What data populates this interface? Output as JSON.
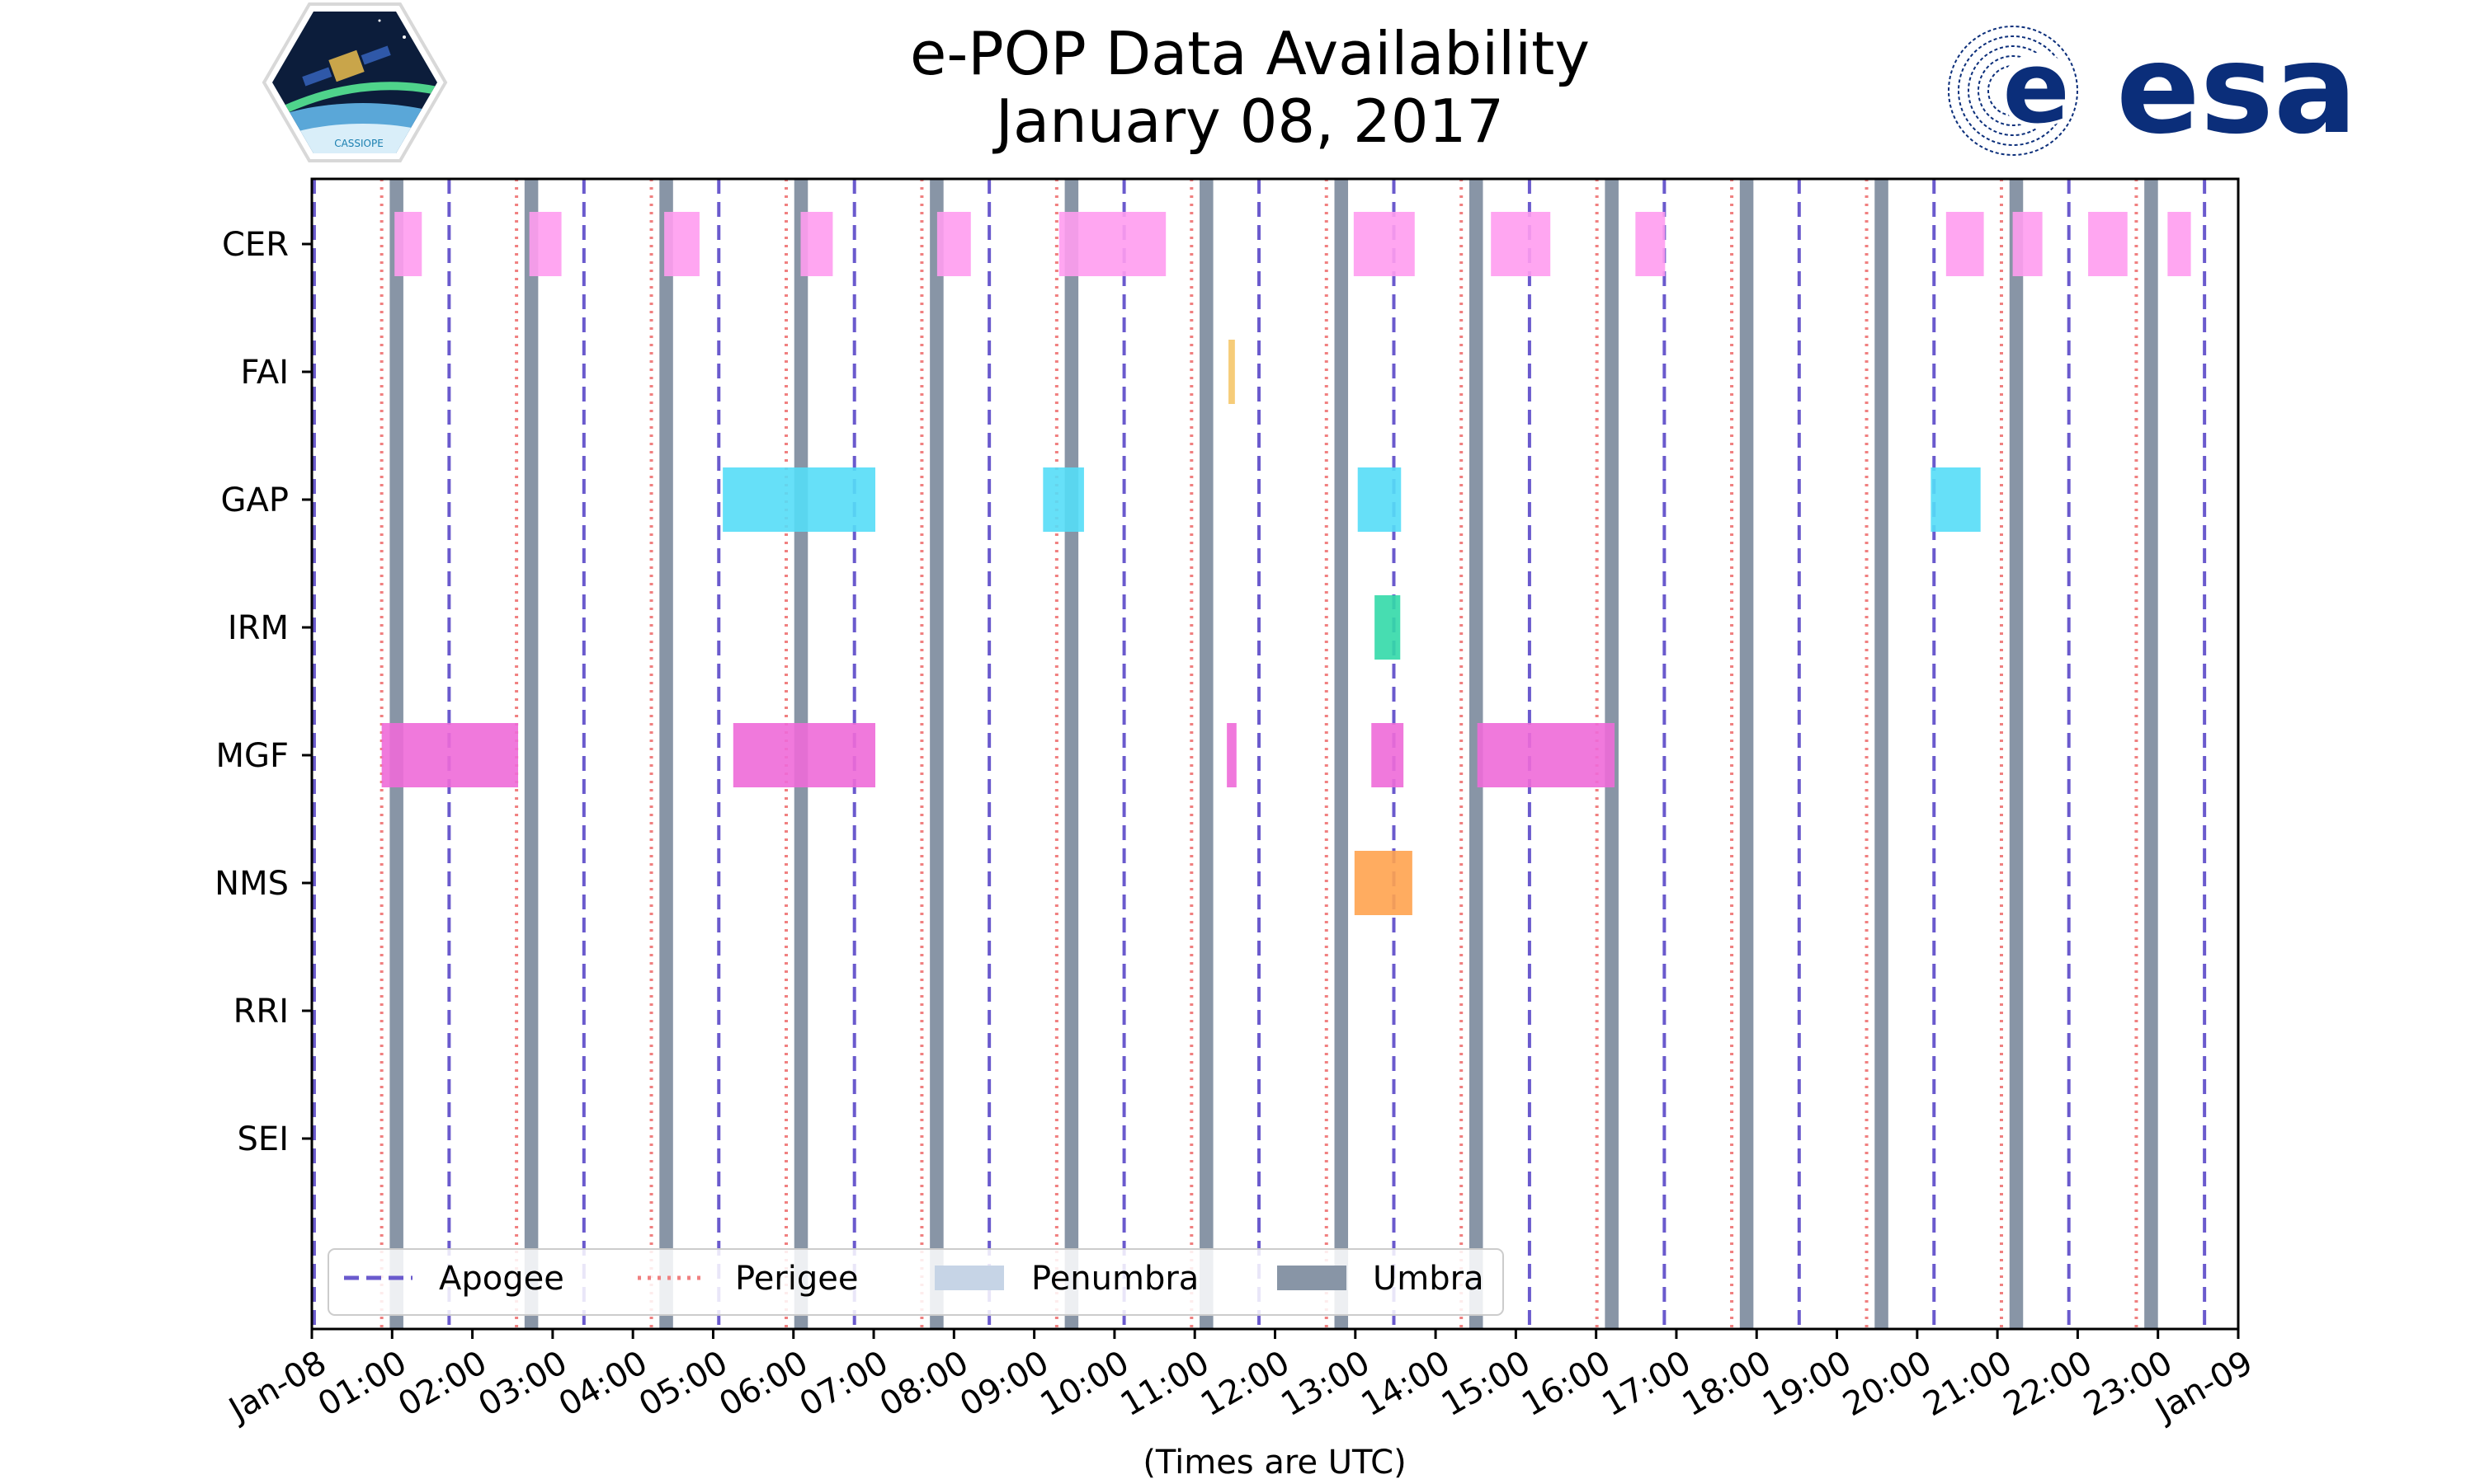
{
  "title": {
    "line1": "e-POP Data Availability",
    "line2": "January 08, 2017"
  },
  "logos": {
    "left_caption": "CASSIOPE",
    "right_text": "esa"
  },
  "colors": {
    "apogee": "#6a5acd",
    "perigee": "#f08080",
    "penumbra": "#c6d4e6",
    "umbra": "#8895a6",
    "CER": "#ff9cf0",
    "FAI": "#f5c66a",
    "GAP": "#55ddf7",
    "IRM": "#33d9a9",
    "MGF": "#ee6ad8",
    "NMS": "#ffa34f",
    "RRI": "#cccccc",
    "SEI": "#cccccc",
    "esa_blue": "#0b2e7a"
  },
  "chart_data": {
    "type": "timeline",
    "title": "e-POP Data Availability January 08, 2017",
    "xlabel": "(Times are UTC)",
    "xlim": [
      0,
      24
    ],
    "x_units": "hours UTC",
    "x_ticks": [
      {
        "value": 0,
        "label": "Jan-08"
      },
      {
        "value": 1,
        "label": "01:00"
      },
      {
        "value": 2,
        "label": "02:00"
      },
      {
        "value": 3,
        "label": "03:00"
      },
      {
        "value": 4,
        "label": "04:00"
      },
      {
        "value": 5,
        "label": "05:00"
      },
      {
        "value": 6,
        "label": "06:00"
      },
      {
        "value": 7,
        "label": "07:00"
      },
      {
        "value": 8,
        "label": "08:00"
      },
      {
        "value": 9,
        "label": "09:00"
      },
      {
        "value": 10,
        "label": "10:00"
      },
      {
        "value": 11,
        "label": "11:00"
      },
      {
        "value": 12,
        "label": "12:00"
      },
      {
        "value": 13,
        "label": "13:00"
      },
      {
        "value": 14,
        "label": "14:00"
      },
      {
        "value": 15,
        "label": "15:00"
      },
      {
        "value": 16,
        "label": "16:00"
      },
      {
        "value": 17,
        "label": "17:00"
      },
      {
        "value": 18,
        "label": "18:00"
      },
      {
        "value": 19,
        "label": "19:00"
      },
      {
        "value": 20,
        "label": "20:00"
      },
      {
        "value": 21,
        "label": "21:00"
      },
      {
        "value": 22,
        "label": "22:00"
      },
      {
        "value": 23,
        "label": "23:00"
      },
      {
        "value": 24,
        "label": "Jan-09"
      }
    ],
    "instruments": [
      "CER",
      "FAI",
      "GAP",
      "IRM",
      "MGF",
      "NMS",
      "RRI",
      "SEI"
    ],
    "apogee": [
      0.03,
      1.71,
      3.39,
      5.07,
      6.76,
      8.44,
      10.12,
      11.8,
      13.48,
      15.17,
      16.85,
      18.53,
      20.21,
      21.89,
      23.58
    ],
    "perigee": [
      0.87,
      2.55,
      4.23,
      5.91,
      7.6,
      9.28,
      10.96,
      12.64,
      14.32,
      16.01,
      17.69,
      19.37,
      21.05,
      22.73
    ],
    "umbra": [
      [
        0.97,
        1.14
      ],
      [
        2.65,
        2.82
      ],
      [
        4.33,
        4.5
      ],
      [
        6.01,
        6.18
      ],
      [
        7.7,
        7.87
      ],
      [
        9.38,
        9.55
      ],
      [
        11.06,
        11.23
      ],
      [
        12.74,
        12.91
      ],
      [
        14.42,
        14.59
      ],
      [
        16.11,
        16.28
      ],
      [
        17.79,
        17.96
      ],
      [
        19.47,
        19.64
      ],
      [
        21.15,
        21.32
      ],
      [
        22.83,
        23.0
      ]
    ],
    "penumbra": [],
    "availability": {
      "CER": [
        [
          1.03,
          1.37
        ],
        [
          2.71,
          3.11
        ],
        [
          4.39,
          4.83
        ],
        [
          6.09,
          6.49
        ],
        [
          7.79,
          8.21
        ],
        [
          9.31,
          10.64
        ],
        [
          12.98,
          13.74
        ],
        [
          14.69,
          15.43
        ],
        [
          16.49,
          16.86
        ],
        [
          20.36,
          20.83
        ],
        [
          21.19,
          21.56
        ],
        [
          22.13,
          22.62
        ],
        [
          23.12,
          23.41
        ]
      ],
      "FAI": [
        [
          11.42,
          11.5
        ]
      ],
      "GAP": [
        [
          5.12,
          7.02
        ],
        [
          9.11,
          9.62
        ],
        [
          13.03,
          13.57
        ],
        [
          20.17,
          20.79
        ]
      ],
      "IRM": [
        [
          13.24,
          13.56
        ]
      ],
      "MGF": [
        [
          0.87,
          2.57
        ],
        [
          5.25,
          7.02
        ],
        [
          11.4,
          11.52
        ],
        [
          13.2,
          13.6
        ],
        [
          14.52,
          16.23
        ]
      ],
      "NMS": [
        [
          12.99,
          13.71
        ]
      ],
      "RRI": [],
      "SEI": []
    },
    "legend": {
      "position": "lower-left",
      "items": [
        {
          "label": "Apogee",
          "style": "dashed"
        },
        {
          "label": "Perigee",
          "style": "dotted"
        },
        {
          "label": "Penumbra",
          "style": "patch"
        },
        {
          "label": "Umbra",
          "style": "patch"
        }
      ]
    }
  }
}
